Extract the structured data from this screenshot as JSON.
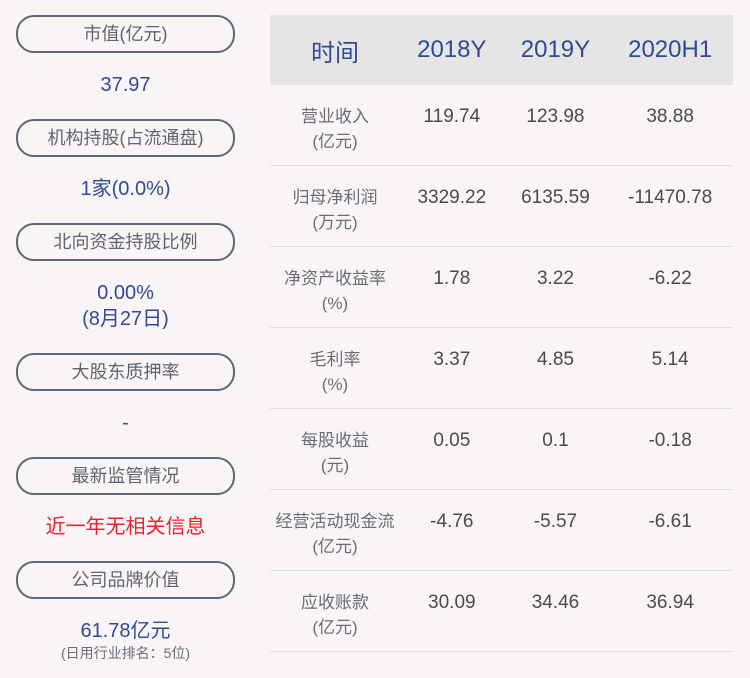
{
  "left": [
    {
      "label": "市值(亿元)",
      "value": "37.97"
    },
    {
      "label": "机构持股(占流通盘)",
      "value": "1家(0.0%)"
    },
    {
      "label": "北向资金持股比例",
      "value": "0.00%",
      "value2": "(8月27日)"
    },
    {
      "label": "大股东质押率",
      "value": "-"
    },
    {
      "label": "最新监管情况",
      "value": "近一年无相关信息"
    },
    {
      "label": "公司品牌价值",
      "value": "61.78亿元",
      "note": "(日用行业排名：5位)"
    }
  ],
  "table": {
    "headers": [
      "时间",
      "2018Y",
      "2019Y",
      "2020H1"
    ],
    "rows": [
      {
        "l1": "营业收入",
        "l2": "(亿元)",
        "v": [
          "119.74",
          "123.98",
          "38.88"
        ]
      },
      {
        "l1": "归母净利润",
        "l2": "(万元)",
        "v": [
          "3329.22",
          "6135.59",
          "-11470.78"
        ]
      },
      {
        "l1": "净资产收益率",
        "l2": "(%)",
        "v": [
          "1.78",
          "3.22",
          "-6.22"
        ]
      },
      {
        "l1": "毛利率",
        "l2": "(%)",
        "v": [
          "3.37",
          "4.85",
          "5.14"
        ]
      },
      {
        "l1": "每股收益",
        "l2": "(元)",
        "v": [
          "0.05",
          "0.1",
          "-0.18"
        ]
      },
      {
        "l1": "经营活动现金流",
        "l2": "(亿元)",
        "v": [
          "-4.76",
          "-5.57",
          "-6.61"
        ]
      },
      {
        "l1": "应收账款",
        "l2": "(亿元)",
        "v": [
          "30.09",
          "34.46",
          "36.94"
        ]
      }
    ]
  },
  "colors": {
    "accent": "#2e4b93",
    "alert": "#e8232d",
    "header_bg": "#e5e5e5"
  }
}
